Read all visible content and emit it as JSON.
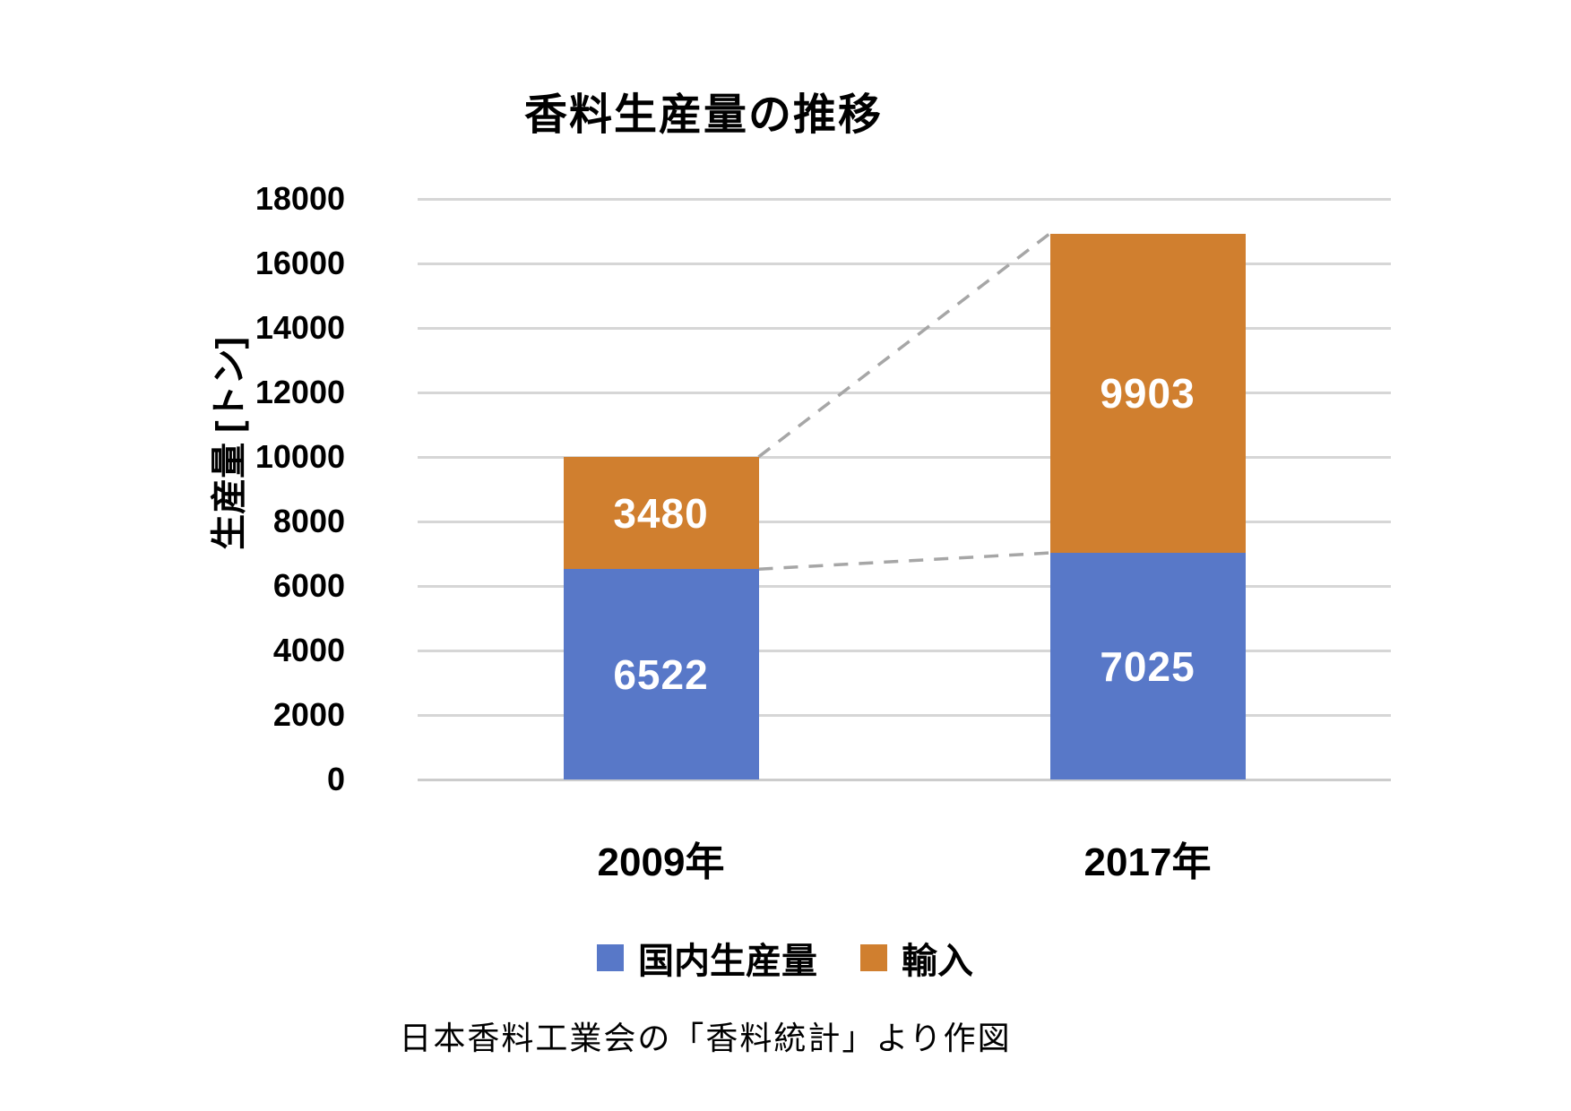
{
  "title": "香料生産量の推移",
  "caption": "日本香料工業会の「香料統計」より作図",
  "chart_data": {
    "type": "bar",
    "stacked": true,
    "title": "香料生産量の推移",
    "xlabel": "",
    "ylabel": "生産量 [トン]",
    "categories": [
      "2009年",
      "2017年"
    ],
    "series": [
      {
        "key": "domestic-production",
        "name": "国内生産量",
        "color": "#5878c8",
        "values": [
          6522,
          7025
        ]
      },
      {
        "key": "import",
        "name": "輸入",
        "color": "#d07f2f",
        "values": [
          3480,
          9903
        ]
      }
    ],
    "stack_totals": [
      10002,
      16928
    ],
    "bar_value_labels": [
      [
        "6522",
        "7025"
      ],
      [
        "3480",
        "9903"
      ]
    ],
    "ylim": [
      0,
      18000
    ],
    "yticks": [
      0,
      2000,
      4000,
      6000,
      8000,
      10000,
      12000,
      14000,
      16000,
      18000
    ],
    "grid": true,
    "gridline_color": "#d6d6d6",
    "legend_position": "bottom",
    "bar_label_color": "#ffffff",
    "connector_lines": {
      "style": "dashed",
      "color": "#a6a6a6",
      "connects": [
        "stack-total-to-stack-total",
        "first-series-top-to-first-series-top"
      ]
    }
  },
  "legend": {
    "items": [
      {
        "label": "国内生産量",
        "color": "#5878c8"
      },
      {
        "label": "輸入",
        "color": "#d07f2f"
      }
    ]
  },
  "colors": {
    "background": "#ffffff",
    "text": "#000000",
    "grid": "#d6d6d6",
    "connector": "#a6a6a6",
    "series_blue": "#5878c8",
    "series_orange": "#d07f2f"
  }
}
